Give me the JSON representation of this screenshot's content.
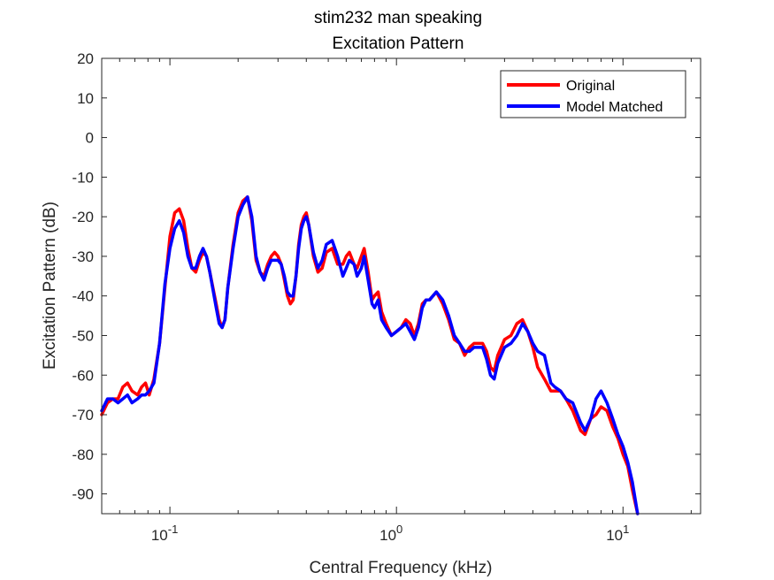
{
  "chart_data": {
    "type": "line",
    "title": "stim232 man speaking",
    "subtitle": "Excitation Pattern",
    "xlabel": "Central Frequency (kHz)",
    "ylabel": "Excitation Pattern (dB)",
    "xscale": "log",
    "xlim": [
      0.05,
      22
    ],
    "ylim": [
      -95,
      20
    ],
    "grid": false,
    "legend_position": "top-right",
    "x_ticks": [
      {
        "value": 0.1,
        "base": "10",
        "exp": "-1"
      },
      {
        "value": 1,
        "base": "10",
        "exp": "0"
      },
      {
        "value": 10,
        "base": "10",
        "exp": "1"
      }
    ],
    "y_ticks": [
      20,
      10,
      0,
      -10,
      -20,
      -30,
      -40,
      -50,
      -60,
      -70,
      -80,
      -90
    ],
    "series": [
      {
        "name": "Original",
        "color": "#ff0000",
        "points": [
          [
            0.05,
            -70
          ],
          [
            0.053,
            -67
          ],
          [
            0.056,
            -66
          ],
          [
            0.059,
            -66
          ],
          [
            0.062,
            -63
          ],
          [
            0.065,
            -62
          ],
          [
            0.068,
            -64
          ],
          [
            0.072,
            -65
          ],
          [
            0.075,
            -63
          ],
          [
            0.078,
            -62
          ],
          [
            0.081,
            -65
          ],
          [
            0.085,
            -61
          ],
          [
            0.09,
            -52
          ],
          [
            0.095,
            -38
          ],
          [
            0.1,
            -25
          ],
          [
            0.105,
            -19
          ],
          [
            0.11,
            -18
          ],
          [
            0.115,
            -21
          ],
          [
            0.12,
            -28
          ],
          [
            0.125,
            -33
          ],
          [
            0.13,
            -34
          ],
          [
            0.135,
            -31
          ],
          [
            0.14,
            -29
          ],
          [
            0.145,
            -30
          ],
          [
            0.15,
            -34
          ],
          [
            0.16,
            -42
          ],
          [
            0.165,
            -46
          ],
          [
            0.17,
            -48
          ],
          [
            0.175,
            -46
          ],
          [
            0.18,
            -38
          ],
          [
            0.19,
            -27
          ],
          [
            0.2,
            -19
          ],
          [
            0.21,
            -16
          ],
          [
            0.22,
            -15
          ],
          [
            0.23,
            -21
          ],
          [
            0.24,
            -31
          ],
          [
            0.25,
            -34
          ],
          [
            0.26,
            -35
          ],
          [
            0.27,
            -32
          ],
          [
            0.28,
            -30
          ],
          [
            0.29,
            -29
          ],
          [
            0.3,
            -30
          ],
          [
            0.31,
            -32
          ],
          [
            0.32,
            -36
          ],
          [
            0.33,
            -40
          ],
          [
            0.34,
            -42
          ],
          [
            0.35,
            -41
          ],
          [
            0.36,
            -35
          ],
          [
            0.37,
            -27
          ],
          [
            0.38,
            -22
          ],
          [
            0.39,
            -20
          ],
          [
            0.4,
            -19
          ],
          [
            0.41,
            -22
          ],
          [
            0.43,
            -30
          ],
          [
            0.45,
            -34
          ],
          [
            0.47,
            -33
          ],
          [
            0.49,
            -29
          ],
          [
            0.52,
            -28
          ],
          [
            0.55,
            -32
          ],
          [
            0.58,
            -32
          ],
          [
            0.6,
            -30
          ],
          [
            0.62,
            -29
          ],
          [
            0.65,
            -32
          ],
          [
            0.67,
            -33
          ],
          [
            0.7,
            -30
          ],
          [
            0.72,
            -28
          ],
          [
            0.75,
            -34
          ],
          [
            0.78,
            -41
          ],
          [
            0.8,
            -40
          ],
          [
            0.83,
            -39
          ],
          [
            0.86,
            -44
          ],
          [
            0.9,
            -47
          ],
          [
            0.95,
            -50
          ],
          [
            1.0,
            -49
          ],
          [
            1.05,
            -48
          ],
          [
            1.1,
            -46
          ],
          [
            1.15,
            -47
          ],
          [
            1.2,
            -50
          ],
          [
            1.25,
            -47
          ],
          [
            1.3,
            -42
          ],
          [
            1.35,
            -41
          ],
          [
            1.4,
            -41
          ],
          [
            1.5,
            -39
          ],
          [
            1.6,
            -42
          ],
          [
            1.7,
            -46
          ],
          [
            1.8,
            -51
          ],
          [
            1.9,
            -52
          ],
          [
            2.0,
            -55
          ],
          [
            2.1,
            -53
          ],
          [
            2.2,
            -52
          ],
          [
            2.4,
            -52
          ],
          [
            2.5,
            -54
          ],
          [
            2.6,
            -58
          ],
          [
            2.7,
            -59
          ],
          [
            2.8,
            -55
          ],
          [
            3.0,
            -51
          ],
          [
            3.2,
            -50
          ],
          [
            3.4,
            -47
          ],
          [
            3.6,
            -46
          ],
          [
            3.8,
            -49
          ],
          [
            4.0,
            -53
          ],
          [
            4.2,
            -58
          ],
          [
            4.5,
            -61
          ],
          [
            4.8,
            -64
          ],
          [
            5.0,
            -64
          ],
          [
            5.3,
            -64
          ],
          [
            5.6,
            -66
          ],
          [
            6.0,
            -69
          ],
          [
            6.5,
            -74
          ],
          [
            6.8,
            -75
          ],
          [
            7.2,
            -71
          ],
          [
            7.6,
            -70
          ],
          [
            8.0,
            -68
          ],
          [
            8.5,
            -69
          ],
          [
            9.0,
            -73
          ],
          [
            9.5,
            -76
          ],
          [
            10.0,
            -80
          ],
          [
            10.5,
            -83
          ],
          [
            11.0,
            -89
          ],
          [
            11.6,
            -95
          ]
        ]
      },
      {
        "name": "Model Matched",
        "color": "#0000ff",
        "points": [
          [
            0.05,
            -69
          ],
          [
            0.053,
            -66
          ],
          [
            0.056,
            -66
          ],
          [
            0.059,
            -67
          ],
          [
            0.062,
            -66
          ],
          [
            0.065,
            -65
          ],
          [
            0.068,
            -67
          ],
          [
            0.072,
            -66
          ],
          [
            0.075,
            -65
          ],
          [
            0.078,
            -65
          ],
          [
            0.081,
            -64
          ],
          [
            0.085,
            -62
          ],
          [
            0.09,
            -52
          ],
          [
            0.095,
            -37
          ],
          [
            0.1,
            -28
          ],
          [
            0.105,
            -23
          ],
          [
            0.11,
            -21
          ],
          [
            0.115,
            -24
          ],
          [
            0.12,
            -30
          ],
          [
            0.125,
            -33
          ],
          [
            0.13,
            -33
          ],
          [
            0.135,
            -30
          ],
          [
            0.14,
            -28
          ],
          [
            0.145,
            -30
          ],
          [
            0.15,
            -34
          ],
          [
            0.16,
            -43
          ],
          [
            0.165,
            -47
          ],
          [
            0.17,
            -48
          ],
          [
            0.175,
            -46
          ],
          [
            0.18,
            -38
          ],
          [
            0.19,
            -28
          ],
          [
            0.2,
            -20
          ],
          [
            0.21,
            -17
          ],
          [
            0.22,
            -15
          ],
          [
            0.23,
            -20
          ],
          [
            0.24,
            -30
          ],
          [
            0.25,
            -34
          ],
          [
            0.26,
            -36
          ],
          [
            0.27,
            -33
          ],
          [
            0.28,
            -31
          ],
          [
            0.29,
            -31
          ],
          [
            0.3,
            -31
          ],
          [
            0.31,
            -32
          ],
          [
            0.32,
            -35
          ],
          [
            0.33,
            -39
          ],
          [
            0.34,
            -40
          ],
          [
            0.35,
            -40
          ],
          [
            0.36,
            -35
          ],
          [
            0.37,
            -28
          ],
          [
            0.38,
            -23
          ],
          [
            0.39,
            -21
          ],
          [
            0.4,
            -20
          ],
          [
            0.41,
            -22
          ],
          [
            0.43,
            -29
          ],
          [
            0.45,
            -33
          ],
          [
            0.47,
            -31
          ],
          [
            0.49,
            -27
          ],
          [
            0.52,
            -26
          ],
          [
            0.55,
            -30
          ],
          [
            0.58,
            -35
          ],
          [
            0.6,
            -33
          ],
          [
            0.62,
            -31
          ],
          [
            0.65,
            -32
          ],
          [
            0.67,
            -35
          ],
          [
            0.7,
            -33
          ],
          [
            0.72,
            -30
          ],
          [
            0.75,
            -36
          ],
          [
            0.78,
            -42
          ],
          [
            0.8,
            -43
          ],
          [
            0.83,
            -41
          ],
          [
            0.86,
            -46
          ],
          [
            0.9,
            -48
          ],
          [
            0.95,
            -50
          ],
          [
            1.0,
            -49
          ],
          [
            1.05,
            -48
          ],
          [
            1.1,
            -47
          ],
          [
            1.15,
            -49
          ],
          [
            1.2,
            -51
          ],
          [
            1.25,
            -48
          ],
          [
            1.3,
            -43
          ],
          [
            1.35,
            -41
          ],
          [
            1.4,
            -41
          ],
          [
            1.5,
            -39
          ],
          [
            1.6,
            -41
          ],
          [
            1.7,
            -45
          ],
          [
            1.8,
            -50
          ],
          [
            1.9,
            -52
          ],
          [
            2.0,
            -54
          ],
          [
            2.1,
            -54
          ],
          [
            2.2,
            -53
          ],
          [
            2.4,
            -53
          ],
          [
            2.5,
            -56
          ],
          [
            2.6,
            -60
          ],
          [
            2.7,
            -61
          ],
          [
            2.8,
            -57
          ],
          [
            3.0,
            -53
          ],
          [
            3.2,
            -52
          ],
          [
            3.4,
            -50
          ],
          [
            3.6,
            -47
          ],
          [
            3.8,
            -49
          ],
          [
            4.0,
            -52
          ],
          [
            4.2,
            -54
          ],
          [
            4.5,
            -55
          ],
          [
            4.8,
            -62
          ],
          [
            5.0,
            -63
          ],
          [
            5.3,
            -64
          ],
          [
            5.6,
            -66
          ],
          [
            6.0,
            -67
          ],
          [
            6.5,
            -72
          ],
          [
            6.8,
            -74
          ],
          [
            7.2,
            -71
          ],
          [
            7.6,
            -66
          ],
          [
            8.0,
            -64
          ],
          [
            8.5,
            -67
          ],
          [
            9.0,
            -71
          ],
          [
            9.5,
            -75
          ],
          [
            10.0,
            -78
          ],
          [
            10.5,
            -82
          ],
          [
            11.0,
            -87
          ],
          [
            11.6,
            -95
          ]
        ]
      }
    ]
  }
}
